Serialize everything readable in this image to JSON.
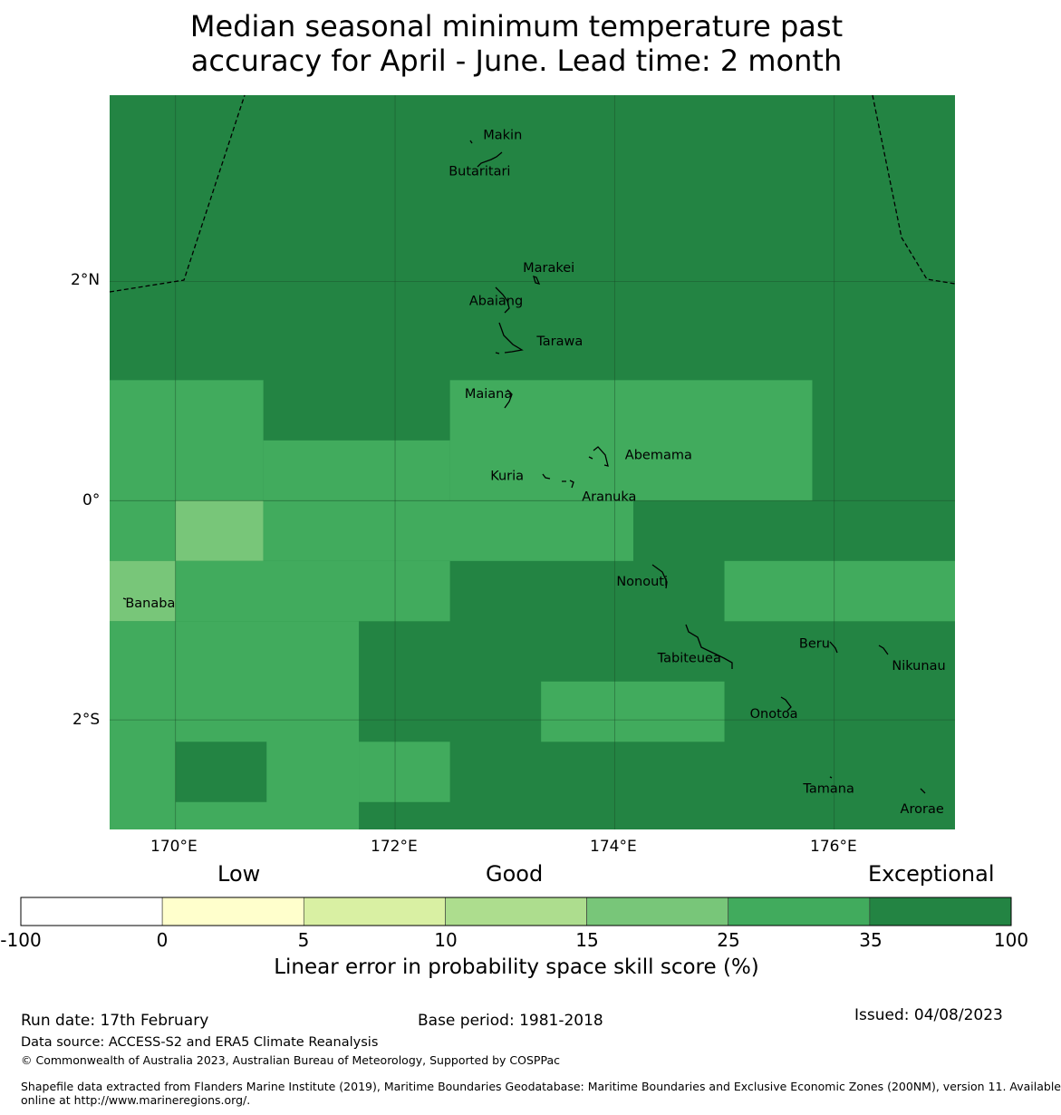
{
  "title": {
    "line1": "Median seasonal minimum temperature past",
    "line2": "accuracy for April - June. Lead time: 2 month"
  },
  "colors": {
    "c_neg": "#ffffff",
    "c_0_5": "#ffffcc",
    "c_5_10": "#d9f0a3",
    "c_10_15": "#addd8e",
    "c_15_25": "#78c679",
    "c_25_35": "#41ab5d",
    "c_35_100": "#238443",
    "coast": "#000000",
    "grid": "#1a4d28"
  },
  "map": {
    "lon_range": [
      169.4,
      177.1
    ],
    "lat_range": [
      -3.0,
      3.7
    ],
    "x_ticks": [
      {
        "lon": 170,
        "label": "170°E"
      },
      {
        "lon": 172,
        "label": "172°E"
      },
      {
        "lon": 174,
        "label": "174°E"
      },
      {
        "lon": 176,
        "label": "176°E"
      }
    ],
    "y_ticks": [
      {
        "lat": 2,
        "label": "2°N"
      },
      {
        "lat": 0,
        "label": "0°"
      },
      {
        "lat": -2,
        "label": "2°S"
      }
    ],
    "skill_cells": [
      {
        "lon": [
          169.4,
          177.1
        ],
        "lat": [
          -3.0,
          3.7
        ],
        "skill": 40
      },
      {
        "lon": [
          169.4,
          170.8
        ],
        "lat": [
          0.0,
          1.1
        ],
        "skill": 30
      },
      {
        "lon": [
          170.8,
          172.5
        ],
        "lat": [
          0.0,
          0.55
        ],
        "skill": 30
      },
      {
        "lon": [
          172.5,
          175.8
        ],
        "lat": [
          0.0,
          1.1
        ],
        "skill": 30
      },
      {
        "lon": [
          169.4,
          170.0
        ],
        "lat": [
          -0.55,
          0.0
        ],
        "skill": 30
      },
      {
        "lon": [
          170.0,
          170.8
        ],
        "lat": [
          -0.55,
          0.0
        ],
        "skill": 20
      },
      {
        "lon": [
          170.8,
          174.17
        ],
        "lat": [
          -0.55,
          0.0
        ],
        "skill": 30
      },
      {
        "lon": [
          169.4,
          170.0
        ],
        "lat": [
          -1.1,
          -0.55
        ],
        "skill": 20
      },
      {
        "lon": [
          170.0,
          172.5
        ],
        "lat": [
          -1.1,
          -0.55
        ],
        "skill": 30
      },
      {
        "lon": [
          175.0,
          177.1
        ],
        "lat": [
          -1.1,
          -0.55
        ],
        "skill": 30
      },
      {
        "lon": [
          169.4,
          171.67
        ],
        "lat": [
          -3.0,
          -1.1
        ],
        "skill": 30
      },
      {
        "lon": [
          173.33,
          175.0
        ],
        "lat": [
          -2.2,
          -1.65
        ],
        "skill": 30
      },
      {
        "lon": [
          171.67,
          172.5
        ],
        "lat": [
          -2.75,
          -2.2
        ],
        "skill": 30
      },
      {
        "lon": [
          170.0,
          170.83
        ],
        "lat": [
          -2.75,
          -2.2
        ],
        "skill": 40
      }
    ],
    "islands": [
      {
        "name": "Makin",
        "label": "Makin",
        "lon": 172.98,
        "lat": 3.33
      },
      {
        "name": "Butaritari",
        "label": "Butaritari",
        "lon": 172.77,
        "lat": 3.0
      },
      {
        "name": "Marakei",
        "label": "Marakei",
        "lon": 173.4,
        "lat": 2.12
      },
      {
        "name": "Abaiang",
        "label": "Abaiang",
        "lon": 172.92,
        "lat": 1.82
      },
      {
        "name": "Tarawa",
        "label": "Tarawa",
        "lon": 173.5,
        "lat": 1.45
      },
      {
        "name": "Maiana",
        "label": "Maiana",
        "lon": 172.85,
        "lat": 0.97
      },
      {
        "name": "Abemama",
        "label": "Abemama",
        "lon": 174.4,
        "lat": 0.41
      },
      {
        "name": "Kuria",
        "label": "Kuria",
        "lon": 173.02,
        "lat": 0.22
      },
      {
        "name": "Aranuka",
        "label": "Aranuka",
        "lon": 173.95,
        "lat": 0.03
      },
      {
        "name": "Nonouti",
        "label": "Nonouti",
        "lon": 174.25,
        "lat": -0.74
      },
      {
        "name": "Banaba",
        "label": "Banaba",
        "lon": 169.77,
        "lat": -0.94
      },
      {
        "name": "Tabiteuea",
        "label": "Tabiteuea",
        "lon": 174.68,
        "lat": -1.44
      },
      {
        "name": "Beru",
        "label": "Beru",
        "lon": 175.82,
        "lat": -1.31
      },
      {
        "name": "Nikunau",
        "label": "Nikunau",
        "lon": 176.77,
        "lat": -1.51
      },
      {
        "name": "Onotoa",
        "label": "Onotoa",
        "lon": 175.45,
        "lat": -1.95
      },
      {
        "name": "Tamana",
        "label": "Tamana",
        "lon": 175.95,
        "lat": -2.63
      },
      {
        "name": "Arorae",
        "label": "Arorae",
        "lon": 176.8,
        "lat": -2.82
      }
    ]
  },
  "colorbar": {
    "words": {
      "low": "Low",
      "good": "Good",
      "exceptional": "Exceptional"
    },
    "ticks": [
      "-100",
      "0",
      "5",
      "10",
      "15",
      "25",
      "35",
      "100"
    ],
    "title": "Linear error in probability space skill score (%)"
  },
  "footer": {
    "run_date": "Run date: 17th February",
    "base_period": "Base period: 1981-2018",
    "issued": "Issued: 04/08/2023",
    "data_source": "Data source: ACCESS-S2 and ERA5 Climate Reanalysis",
    "copyright": "© Commonwealth of Australia 2023, Australian Bureau of Meteorology, Supported by COSPPac",
    "shapefile_line1": "Shapefile data extracted from Flanders Marine Institute (2019), Maritime Boundaries Geodatabase: Maritime Boundaries and Exclusive Economic Zones (200NM), version 11. Available",
    "shapefile_line2": "online at http://www.marineregions.org/."
  }
}
